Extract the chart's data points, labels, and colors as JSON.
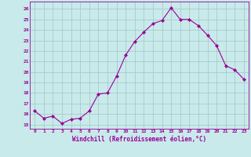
{
  "x": [
    0,
    1,
    2,
    3,
    4,
    5,
    6,
    7,
    8,
    9,
    10,
    11,
    12,
    13,
    14,
    15,
    16,
    17,
    18,
    19,
    20,
    21,
    22,
    23
  ],
  "y": [
    16.3,
    15.6,
    15.8,
    15.1,
    15.5,
    15.6,
    16.3,
    17.9,
    18.0,
    19.6,
    21.6,
    22.9,
    23.8,
    24.6,
    24.9,
    26.1,
    25.0,
    25.0,
    24.4,
    23.5,
    22.5,
    20.6,
    20.2,
    19.3
  ],
  "line_color": "#990099",
  "marker_color": "#990099",
  "bg_color": "#c8eaea",
  "grid_color": "#a8caca",
  "xlabel": "Windchill (Refroidissement éolien,°C)",
  "xlabel_color": "#990099",
  "ytick_labels": [
    "15",
    "16",
    "17",
    "18",
    "19",
    "20",
    "21",
    "22",
    "23",
    "24",
    "25",
    "26"
  ],
  "ytick_vals": [
    15,
    16,
    17,
    18,
    19,
    20,
    21,
    22,
    23,
    24,
    25,
    26
  ],
  "ylim": [
    14.6,
    26.7
  ],
  "xlim": [
    -0.5,
    23.5
  ],
  "tick_color": "#990099",
  "xtick_labels": [
    "0",
    "1",
    "2",
    "3",
    "4",
    "5",
    "6",
    "7",
    "8",
    "9",
    "10",
    "11",
    "12",
    "13",
    "14",
    "15",
    "16",
    "17",
    "18",
    "19",
    "20",
    "21",
    "22",
    "23"
  ]
}
